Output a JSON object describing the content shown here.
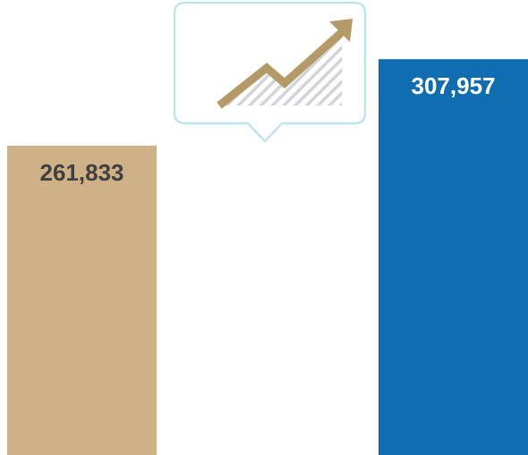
{
  "chart_data": {
    "type": "bar",
    "categories": [
      null,
      null
    ],
    "values": [
      261833,
      307957
    ],
    "value_labels": [
      "261,833",
      "307,957"
    ],
    "colors": [
      "#cfb188",
      "#106db2"
    ],
    "label_colors": [
      "#404040",
      "#ffffff"
    ],
    "ylim": [
      97000,
      339500
    ]
  }
}
